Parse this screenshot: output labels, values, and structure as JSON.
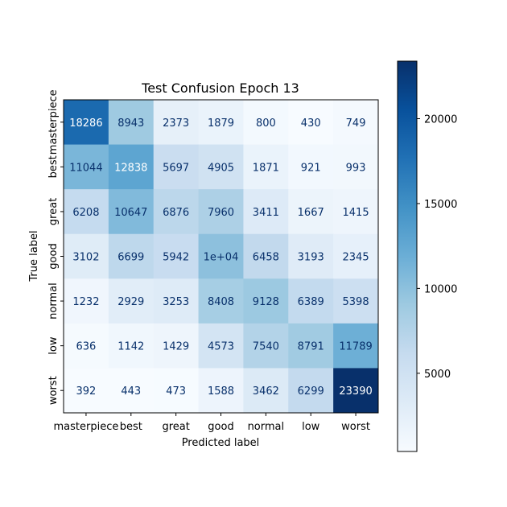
{
  "chart_data": {
    "type": "heatmap",
    "title": "Test Confusion Epoch 13",
    "xlabel": "Predicted label",
    "ylabel": "True label",
    "x_categories": [
      "masterpiece",
      "best",
      "great",
      "good",
      "normal",
      "low",
      "worst"
    ],
    "y_categories": [
      "masterpiece",
      "best",
      "great",
      "good",
      "normal",
      "low",
      "worst"
    ],
    "values": [
      [
        18286,
        8943,
        2373,
        1879,
        800,
        430,
        749
      ],
      [
        11044,
        12838,
        5697,
        4905,
        1871,
        921,
        993
      ],
      [
        6208,
        10647,
        6876,
        7960,
        3411,
        1667,
        1415
      ],
      [
        3102,
        6699,
        5942,
        10000,
        6458,
        3193,
        2345
      ],
      [
        1232,
        2929,
        3253,
        8408,
        9128,
        6389,
        5398
      ],
      [
        636,
        1142,
        1429,
        4573,
        7540,
        8791,
        11789
      ],
      [
        392,
        443,
        473,
        1588,
        3462,
        6299,
        23390
      ]
    ],
    "cell_labels": [
      [
        "18286",
        "8943",
        "2373",
        "1879",
        "800",
        "430",
        "749"
      ],
      [
        "11044",
        "12838",
        "5697",
        "4905",
        "1871",
        "921",
        "993"
      ],
      [
        "6208",
        "10647",
        "6876",
        "7960",
        "3411",
        "1667",
        "1415"
      ],
      [
        "3102",
        "6699",
        "5942",
        "1e+04",
        "6458",
        "3193",
        "2345"
      ],
      [
        "1232",
        "2929",
        "3253",
        "8408",
        "9128",
        "6389",
        "5398"
      ],
      [
        "636",
        "1142",
        "1429",
        "4573",
        "7540",
        "8791",
        "11789"
      ],
      [
        "392",
        "443",
        "473",
        "1588",
        "3462",
        "6299",
        "23390"
      ]
    ],
    "colormap": "Blues",
    "color_range": [
      392,
      23390
    ],
    "colorbar_ticks": [
      5000,
      10000,
      15000,
      20000
    ],
    "colorbar_tick_labels": [
      "5000",
      "10000",
      "15000",
      "20000"
    ],
    "text_color_dark": "#08306b",
    "text_color_light": "#ffffff"
  }
}
